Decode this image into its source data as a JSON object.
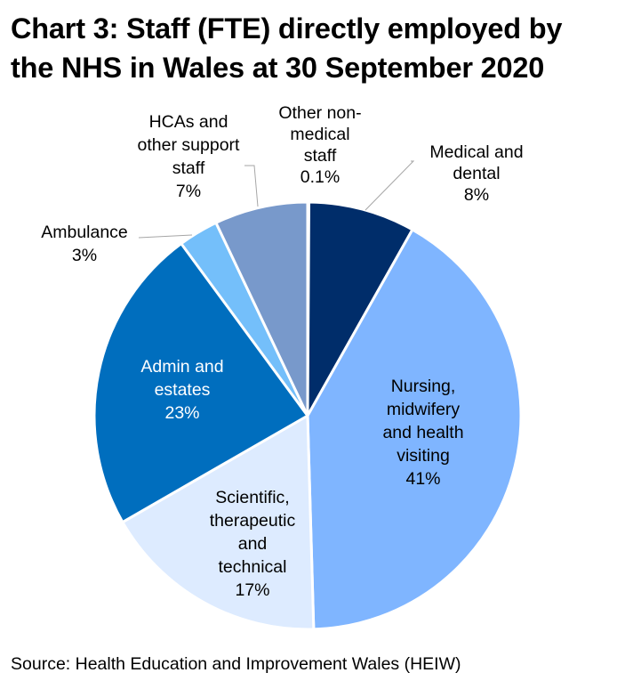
{
  "title_lines": [
    "Chart 3: Staff (FTE) directly employed by",
    "the NHS in Wales at 30 September 2020"
  ],
  "source": "Source: Health Education and Improvement Wales (HEIW)",
  "chart_data": {
    "type": "pie",
    "title": "Chart 3: Staff (FTE) directly employed by the NHS in Wales at 30 September 2020",
    "start": "12 o'clock",
    "direction": "clockwise",
    "slices": [
      {
        "name": "Other non-medical staff",
        "value": 0.1,
        "label_lines": [
          "Other non-",
          "medical",
          "staff",
          "0.1%"
        ],
        "color": "#3A5FA0",
        "text_color": "#000000",
        "label_position": "outside"
      },
      {
        "name": "Medical and dental",
        "value": 8,
        "label_lines": [
          "Medical and",
          "dental",
          "8%"
        ],
        "color": "#002D6A",
        "text_color": "#000000",
        "label_position": "outside"
      },
      {
        "name": "Nursing, midwifery and health visiting",
        "value": 41,
        "label_lines": [
          "Nursing,",
          "midwifery",
          "and health",
          "visiting",
          "41%"
        ],
        "color": "#7FB5FF",
        "text_color": "#000000",
        "label_position": "inside"
      },
      {
        "name": "Scientific, therapeutic and technical",
        "value": 17,
        "label_lines": [
          "Scientific,",
          "therapeutic",
          "and",
          "technical",
          "17%"
        ],
        "color": "#DDEBFF",
        "text_color": "#000000",
        "label_position": "inside"
      },
      {
        "name": "Admin and estates",
        "value": 23,
        "label_lines": [
          "Admin and",
          "estates",
          "23%"
        ],
        "color": "#006EBE",
        "text_color": "#FFFFFF",
        "label_position": "inside"
      },
      {
        "name": "Ambulance",
        "value": 3,
        "label_lines": [
          "Ambulance",
          "3%"
        ],
        "color": "#74BFFA",
        "text_color": "#000000",
        "label_position": "outside"
      },
      {
        "name": "HCAs and other support staff",
        "value": 7,
        "label_lines": [
          "HCAs and",
          "other support",
          "staff",
          "7%"
        ],
        "color": "#7899CB",
        "text_color": "#000000",
        "label_position": "outside"
      }
    ]
  }
}
